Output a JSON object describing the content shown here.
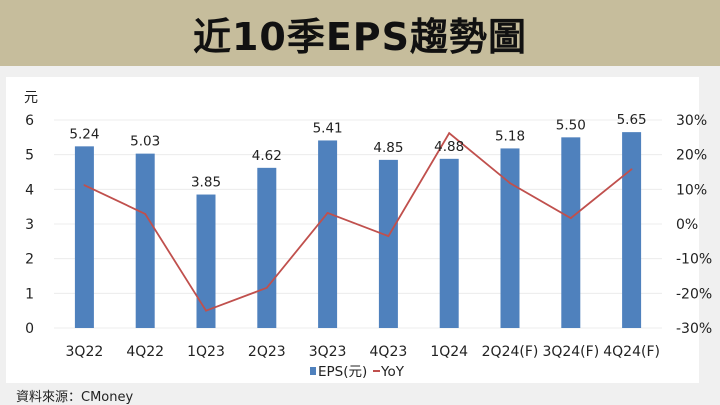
{
  "title": "近10季EPS趨勢圖",
  "source": "資料來源：CMoney",
  "colors": {
    "bar": "#4f81bd",
    "line": "#c0504d",
    "title_band": "#c6bd9c"
  },
  "chart_data": {
    "type": "bar",
    "title": "近10季EPS趨勢圖",
    "categories": [
      "3Q22",
      "4Q22",
      "1Q23",
      "2Q23",
      "3Q23",
      "4Q23",
      "1Q24",
      "2Q24(F)",
      "3Q24(F)",
      "4Q24(F)"
    ],
    "series": [
      {
        "name": "EPS(元)",
        "type": "bar",
        "axis": "left",
        "values": [
          5.24,
          5.03,
          3.85,
          4.62,
          5.41,
          4.85,
          4.88,
          5.18,
          5.5,
          5.65
        ],
        "labels": [
          "5.24",
          "5.03",
          "3.85",
          "4.62",
          "5.41",
          "4.85",
          "4.88",
          "5.18",
          "5.50",
          "5.65"
        ]
      },
      {
        "name": "YoY",
        "type": "line",
        "axis": "right",
        "values": [
          11.2,
          2.9,
          -25.0,
          -18.4,
          3.2,
          -3.5,
          26.2,
          11.8,
          1.7,
          15.8
        ]
      }
    ],
    "ylabel": "元",
    "ylim": [
      0,
      6
    ],
    "yticks": [
      "0",
      "1",
      "2",
      "3",
      "4",
      "5",
      "6"
    ],
    "y2lim": [
      -30,
      30
    ],
    "y2ticks": [
      "-30%",
      "-20%",
      "-10%",
      "0%",
      "10%",
      "20%",
      "30%"
    ],
    "grid": true,
    "legend": {
      "position": "bottom",
      "bar_label": "EPS(元)",
      "line_label": "YoY"
    }
  }
}
